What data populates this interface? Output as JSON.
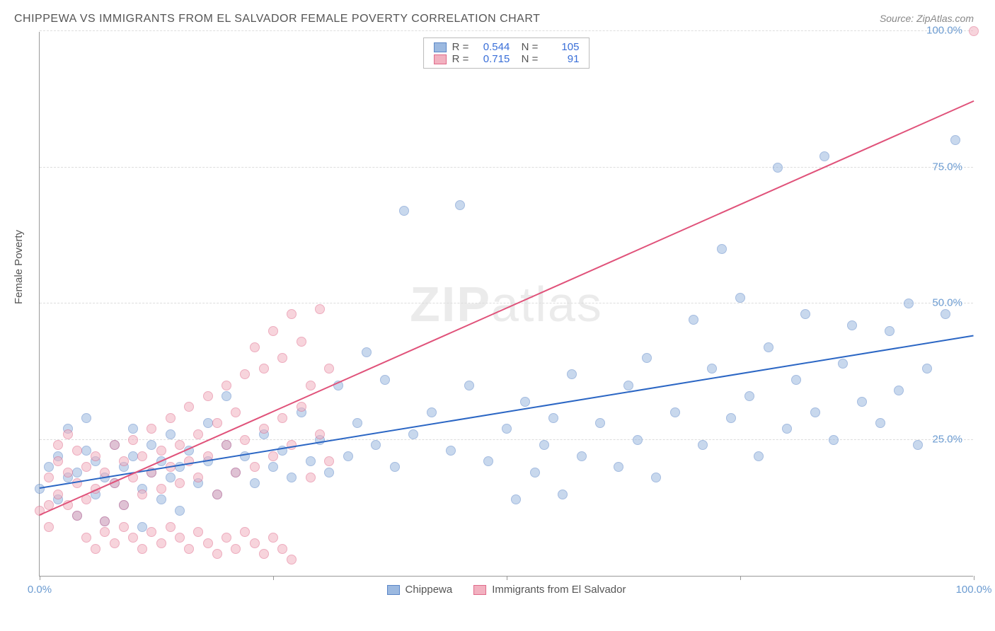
{
  "title": "CHIPPEWA VS IMMIGRANTS FROM EL SALVADOR FEMALE POVERTY CORRELATION CHART",
  "source": "Source: ZipAtlas.com",
  "ylabel": "Female Poverty",
  "watermark_prefix": "ZIP",
  "watermark_suffix": "atlas",
  "chart": {
    "type": "scatter",
    "xlim": [
      0,
      100
    ],
    "ylim": [
      0,
      100
    ],
    "x_ticks": [
      0,
      25,
      50,
      75,
      100
    ],
    "y_ticks": [
      25,
      50,
      75,
      100
    ],
    "x_tick_labels": [
      "0.0%",
      "",
      "",
      "",
      "100.0%"
    ],
    "y_tick_labels": [
      "25.0%",
      "50.0%",
      "75.0%",
      "100.0%"
    ],
    "grid_color": "#dddddd",
    "axis_color": "#999999",
    "background_color": "#ffffff",
    "tick_label_color": "#6b9bd1",
    "point_radius": 7,
    "point_opacity": 0.55,
    "series": [
      {
        "name": "Chippewa",
        "color_fill": "#9cb9e0",
        "color_stroke": "#5b86c7",
        "trend_color": "#2b66c4",
        "R": "0.544",
        "N": "105",
        "trend": {
          "x1": 0,
          "y1": 16,
          "x2": 100,
          "y2": 44
        },
        "points": [
          [
            0,
            16
          ],
          [
            1,
            20
          ],
          [
            2,
            14
          ],
          [
            2,
            22
          ],
          [
            3,
            18
          ],
          [
            3,
            27
          ],
          [
            4,
            11
          ],
          [
            4,
            19
          ],
          [
            5,
            23
          ],
          [
            5,
            29
          ],
          [
            6,
            15
          ],
          [
            6,
            21
          ],
          [
            7,
            18
          ],
          [
            7,
            10
          ],
          [
            8,
            24
          ],
          [
            8,
            17
          ],
          [
            9,
            20
          ],
          [
            9,
            13
          ],
          [
            10,
            22
          ],
          [
            10,
            27
          ],
          [
            11,
            16
          ],
          [
            11,
            9
          ],
          [
            12,
            19
          ],
          [
            12,
            24
          ],
          [
            13,
            21
          ],
          [
            13,
            14
          ],
          [
            14,
            18
          ],
          [
            14,
            26
          ],
          [
            15,
            20
          ],
          [
            15,
            12
          ],
          [
            16,
            23
          ],
          [
            17,
            17
          ],
          [
            18,
            21
          ],
          [
            18,
            28
          ],
          [
            19,
            15
          ],
          [
            20,
            24
          ],
          [
            20,
            33
          ],
          [
            21,
            19
          ],
          [
            22,
            22
          ],
          [
            23,
            17
          ],
          [
            24,
            26
          ],
          [
            25,
            20
          ],
          [
            26,
            23
          ],
          [
            27,
            18
          ],
          [
            28,
            30
          ],
          [
            29,
            21
          ],
          [
            30,
            25
          ],
          [
            31,
            19
          ],
          [
            32,
            35
          ],
          [
            33,
            22
          ],
          [
            34,
            28
          ],
          [
            35,
            41
          ],
          [
            36,
            24
          ],
          [
            37,
            36
          ],
          [
            38,
            20
          ],
          [
            39,
            67
          ],
          [
            40,
            26
          ],
          [
            42,
            30
          ],
          [
            44,
            23
          ],
          [
            45,
            68
          ],
          [
            46,
            35
          ],
          [
            48,
            21
          ],
          [
            50,
            27
          ],
          [
            51,
            14
          ],
          [
            52,
            32
          ],
          [
            53,
            19
          ],
          [
            54,
            24
          ],
          [
            55,
            29
          ],
          [
            56,
            15
          ],
          [
            57,
            37
          ],
          [
            58,
            22
          ],
          [
            60,
            28
          ],
          [
            62,
            20
          ],
          [
            63,
            35
          ],
          [
            64,
            25
          ],
          [
            65,
            40
          ],
          [
            66,
            18
          ],
          [
            68,
            30
          ],
          [
            70,
            47
          ],
          [
            71,
            24
          ],
          [
            72,
            38
          ],
          [
            73,
            60
          ],
          [
            74,
            29
          ],
          [
            75,
            51
          ],
          [
            76,
            33
          ],
          [
            77,
            22
          ],
          [
            78,
            42
          ],
          [
            79,
            75
          ],
          [
            80,
            27
          ],
          [
            81,
            36
          ],
          [
            82,
            48
          ],
          [
            83,
            30
          ],
          [
            84,
            77
          ],
          [
            85,
            25
          ],
          [
            86,
            39
          ],
          [
            87,
            46
          ],
          [
            88,
            32
          ],
          [
            90,
            28
          ],
          [
            91,
            45
          ],
          [
            92,
            34
          ],
          [
            93,
            50
          ],
          [
            94,
            24
          ],
          [
            95,
            38
          ],
          [
            97,
            48
          ],
          [
            98,
            80
          ]
        ]
      },
      {
        "name": "Immigrants from El Salvador",
        "color_fill": "#f2b1c0",
        "color_stroke": "#e06a8a",
        "trend_color": "#e0527a",
        "R": "0.715",
        "N": "91",
        "trend": {
          "x1": 0,
          "y1": 11,
          "x2": 100,
          "y2": 87
        },
        "points": [
          [
            0,
            12
          ],
          [
            1,
            18
          ],
          [
            1,
            9
          ],
          [
            2,
            15
          ],
          [
            2,
            21
          ],
          [
            3,
            13
          ],
          [
            3,
            19
          ],
          [
            4,
            17
          ],
          [
            4,
            11
          ],
          [
            5,
            20
          ],
          [
            5,
            14
          ],
          [
            6,
            22
          ],
          [
            6,
            16
          ],
          [
            7,
            19
          ],
          [
            7,
            10
          ],
          [
            8,
            24
          ],
          [
            8,
            17
          ],
          [
            9,
            21
          ],
          [
            9,
            13
          ],
          [
            10,
            25
          ],
          [
            10,
            18
          ],
          [
            11,
            22
          ],
          [
            11,
            15
          ],
          [
            12,
            27
          ],
          [
            12,
            19
          ],
          [
            13,
            23
          ],
          [
            13,
            16
          ],
          [
            14,
            29
          ],
          [
            14,
            20
          ],
          [
            15,
            24
          ],
          [
            15,
            17
          ],
          [
            16,
            31
          ],
          [
            16,
            21
          ],
          [
            17,
            26
          ],
          [
            17,
            18
          ],
          [
            18,
            33
          ],
          [
            18,
            22
          ],
          [
            19,
            28
          ],
          [
            19,
            15
          ],
          [
            20,
            35
          ],
          [
            20,
            24
          ],
          [
            21,
            30
          ],
          [
            21,
            19
          ],
          [
            22,
            37
          ],
          [
            22,
            25
          ],
          [
            23,
            42
          ],
          [
            23,
            20
          ],
          [
            24,
            38
          ],
          [
            24,
            27
          ],
          [
            25,
            45
          ],
          [
            25,
            22
          ],
          [
            26,
            40
          ],
          [
            26,
            29
          ],
          [
            27,
            48
          ],
          [
            27,
            24
          ],
          [
            28,
            43
          ],
          [
            28,
            31
          ],
          [
            29,
            18
          ],
          [
            29,
            35
          ],
          [
            30,
            49
          ],
          [
            30,
            26
          ],
          [
            31,
            38
          ],
          [
            31,
            21
          ],
          [
            5,
            7
          ],
          [
            6,
            5
          ],
          [
            7,
            8
          ],
          [
            8,
            6
          ],
          [
            9,
            9
          ],
          [
            10,
            7
          ],
          [
            11,
            5
          ],
          [
            12,
            8
          ],
          [
            13,
            6
          ],
          [
            14,
            9
          ],
          [
            15,
            7
          ],
          [
            16,
            5
          ],
          [
            17,
            8
          ],
          [
            18,
            6
          ],
          [
            19,
            4
          ],
          [
            20,
            7
          ],
          [
            21,
            5
          ],
          [
            22,
            8
          ],
          [
            23,
            6
          ],
          [
            24,
            4
          ],
          [
            25,
            7
          ],
          [
            26,
            5
          ],
          [
            27,
            3
          ],
          [
            2,
            24
          ],
          [
            3,
            26
          ],
          [
            4,
            23
          ],
          [
            100,
            100
          ],
          [
            1,
            13
          ]
        ]
      }
    ]
  },
  "legend_bottom": [
    {
      "label": "Chippewa",
      "fill": "#9cb9e0",
      "stroke": "#5b86c7"
    },
    {
      "label": "Immigrants from El Salvador",
      "fill": "#f2b1c0",
      "stroke": "#e06a8a"
    }
  ]
}
